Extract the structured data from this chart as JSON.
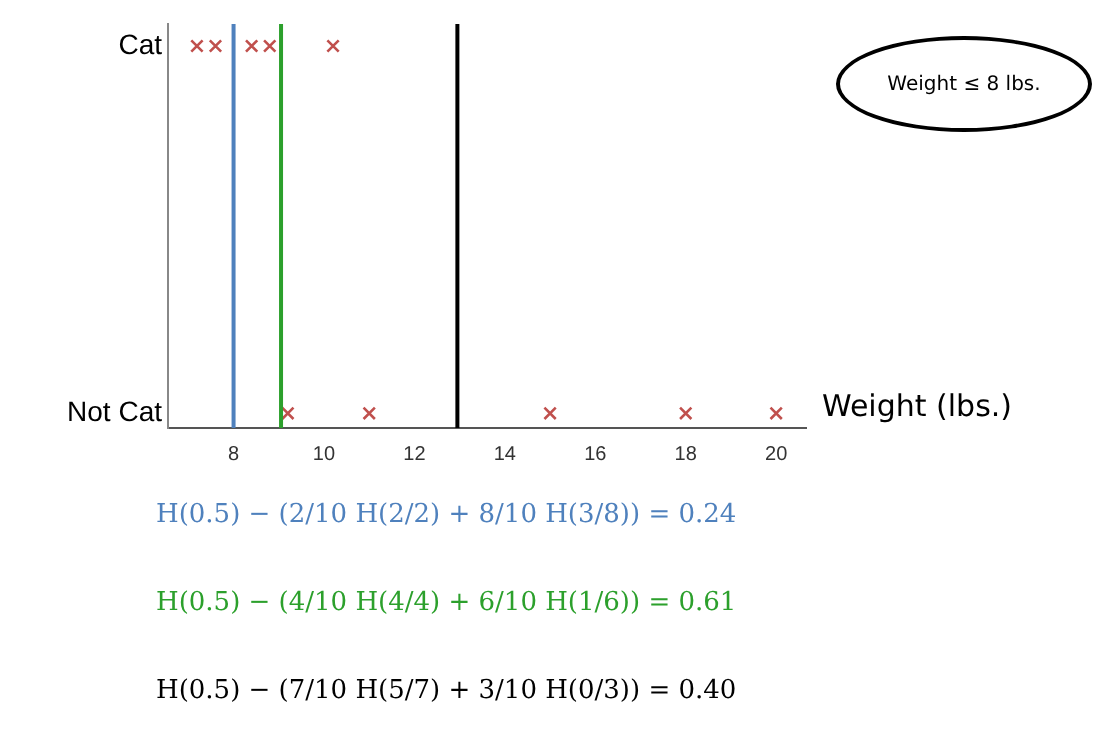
{
  "chart_data": {
    "type": "scatter",
    "xlabel": "Weight (lbs.)",
    "orientation": "horizontal",
    "categories": [
      "Cat",
      "Not Cat"
    ],
    "series": [
      {
        "color": "#c0504d",
        "x": [
          "Cat",
          "Cat",
          "Cat",
          "Cat",
          "Cat",
          "Not Cat",
          "Not Cat",
          "Not Cat",
          "Not Cat",
          "Not Cat"
        ],
        "values": [
          7.19,
          7.6,
          8.4,
          8.8,
          10.2,
          9.2,
          11.0,
          15.0,
          18.0,
          20.0
        ]
      }
    ],
    "xlim": [
      6.55,
      20.66
    ],
    "xticks": [
      8,
      10,
      12,
      14,
      16,
      18,
      20
    ],
    "marker": "cross",
    "grid": false,
    "legend": false,
    "ref_lines": [
      {
        "axis": "x",
        "value": 8.0,
        "color": "#4f81bd"
      },
      {
        "axis": "x",
        "value": 9.05,
        "color": "#2ca02c"
      },
      {
        "axis": "x",
        "value": 12.95,
        "color": "#000000"
      }
    ],
    "annotations": [
      "Weight ≤ 8 lbs.",
      "H(0.5) − (2/10 H(2/2) + 8/10 H(3/8)) = 0.24",
      "H(0.5) − (4/10 H(4/4) + 6/10 H(1/6)) = 0.61",
      "H(0.5) − (7/10 H(5/7) + 3/10 H(0/3)) = 0.40"
    ]
  }
}
